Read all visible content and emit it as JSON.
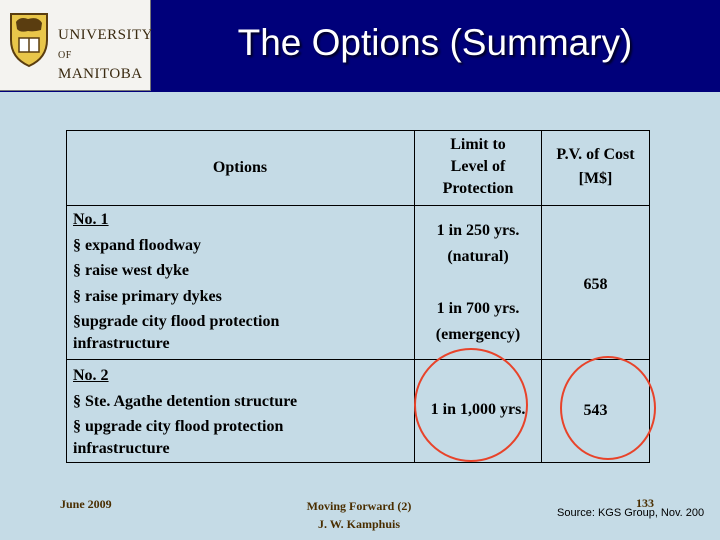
{
  "logo": {
    "line1": "UNIVERSITY",
    "line2_prefix": "OF",
    "line2": "MANITOBA"
  },
  "title": "The Options (Summary)",
  "table": {
    "headers": {
      "options": "Options",
      "limit": [
        "Limit to",
        "Level of",
        "Protection"
      ],
      "cost": [
        "P.V. of Cost",
        "[M$]"
      ]
    },
    "option1": {
      "heading": "No. 1",
      "items": [
        "§ expand floodway",
        "§ raise west dyke",
        "§ raise primary dykes",
        "§upgrade city flood protection",
        "infrastructure"
      ],
      "limit_a": [
        "1 in 250 yrs.",
        "(natural)"
      ],
      "limit_b": [
        "1 in 700 yrs.",
        "(emergency)"
      ],
      "cost": "658"
    },
    "option2": {
      "heading": "No. 2",
      "items": [
        "§ Ste. Agathe detention structure",
        "§ upgrade city flood protection",
        "infrastructure"
      ],
      "limit": "1 in 1,000 yrs.",
      "cost": "543"
    }
  },
  "footer": {
    "date": "June 2009",
    "center_line1": "Moving Forward (2)",
    "center_line2": "J. W. Kamphuis",
    "page": "133",
    "source": "Source: KGS Group, Nov. 200"
  },
  "colors": {
    "header_bg": "#00007a",
    "slide_bg": "#c5dbe6",
    "highlight_circle": "#e8432a"
  }
}
